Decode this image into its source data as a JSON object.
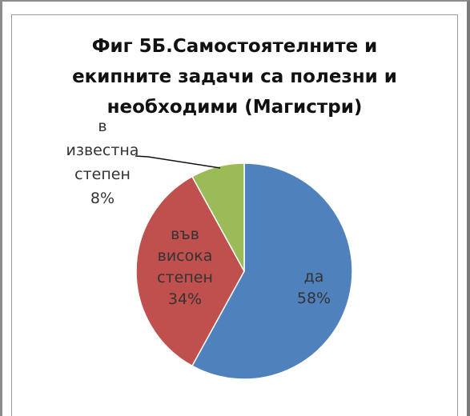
{
  "chart_data": {
    "type": "pie",
    "title_lines": [
      "Фиг 5Б.Самостоятелните и",
      "екипните задачи са полезни и",
      "необходими (Магистри)"
    ],
    "slices": [
      {
        "label_lines": [
          "да"
        ],
        "value": 58,
        "value_label": "58%",
        "color": "#4f81bd"
      },
      {
        "label_lines": [
          "във",
          "висока",
          "степен"
        ],
        "value": 34,
        "value_label": "34%",
        "color": "#c0504d"
      },
      {
        "label_lines": [
          "в",
          "известна",
          "степен"
        ],
        "value": 8,
        "value_label": "8%",
        "color": "#9bbb59"
      }
    ],
    "legend": "none"
  }
}
